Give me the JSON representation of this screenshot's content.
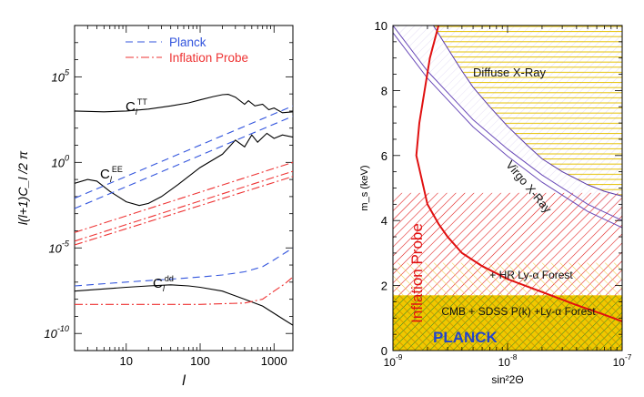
{
  "chart_data": [
    {
      "type": "line",
      "xlabel": "l",
      "ylabel": "l(l+1)C_l /2 π",
      "x_scale": "log",
      "y_scale": "log",
      "xlim": [
        2,
        1800
      ],
      "ylim": [
        1e-11,
        100000000.0
      ],
      "x_ticks": [
        {
          "value": 10,
          "label": "10"
        },
        {
          "value": 100,
          "label": "100"
        },
        {
          "value": 1000,
          "label": "1000"
        }
      ],
      "y_ticks": [
        {
          "value": 100000.0,
          "label": "10^5"
        },
        {
          "value": 1,
          "label": "10^0"
        },
        {
          "value": 1e-05,
          "label": "10^-5"
        },
        {
          "value": 1e-10,
          "label": "10^-10"
        }
      ],
      "legend": [
        {
          "label": "Planck",
          "color": "#3355dd",
          "style": "dashed"
        },
        {
          "label": "Inflation Probe",
          "color": "#ee3333",
          "style": "dash-dot"
        }
      ],
      "legend_position": "top-right",
      "curve_labels": [
        {
          "main": "C",
          "sub": "l",
          "sup": "TT"
        },
        {
          "main": "C",
          "sub": "l",
          "sup": "EE"
        },
        {
          "main": "C",
          "sub": "l",
          "sup": "dd"
        }
      ],
      "series": [
        {
          "curve": "TT",
          "color": "#000000",
          "style": "solid",
          "x": [
            2,
            5,
            10,
            20,
            40,
            70,
            100,
            150,
            200,
            240,
            300,
            400,
            450,
            550,
            700,
            850,
            1000,
            1300,
            1800
          ],
          "y": [
            1000,
            900,
            1000,
            1300,
            2000,
            3000,
            4500,
            7000,
            9000,
            9500,
            6500,
            2500,
            4000,
            2000,
            2500,
            1200,
            1500,
            800,
            900
          ]
        },
        {
          "curve": "EE",
          "color": "#000000",
          "style": "solid",
          "x": [
            2,
            3,
            4,
            6,
            10,
            15,
            20,
            30,
            50,
            100,
            200,
            300,
            400,
            500,
            600,
            800,
            1000,
            1300,
            1800
          ],
          "y": [
            0.06,
            0.1,
            0.08,
            0.02,
            0.005,
            0.003,
            0.004,
            0.01,
            0.05,
            0.5,
            3,
            20,
            8,
            40,
            15,
            50,
            25,
            40,
            30
          ]
        },
        {
          "curve": "dd",
          "color": "#000000",
          "style": "solid",
          "x": [
            2,
            5,
            10,
            20,
            40,
            70,
            100,
            200,
            400,
            700,
            1000,
            1400,
            1800
          ],
          "y": [
            3e-08,
            4e-08,
            5e-08,
            6e-08,
            7e-08,
            6e-08,
            5e-08,
            3e-08,
            1e-08,
            4e-09,
            1.5e-09,
            6e-10,
            3e-10
          ]
        },
        {
          "name": "Planck",
          "color": "#3355dd",
          "style": "dashed",
          "x": [
            2,
            1800
          ],
          "y": [
            0.008,
            2000
          ]
        },
        {
          "name": "Planck",
          "color": "#3355dd",
          "style": "dashed",
          "x": [
            2,
            1800
          ],
          "y": [
            0.002,
            500
          ]
        },
        {
          "name": "Planck",
          "color": "#3355dd",
          "style": "dashed",
          "x": [
            2,
            10,
            50,
            100,
            200,
            400,
            700,
            1000,
            1400,
            1800
          ],
          "y": [
            6e-08,
            1e-07,
            1.6e-07,
            2e-07,
            2.6e-07,
            4e-07,
            8e-07,
            2e-06,
            5e-06,
            1e-05
          ]
        },
        {
          "name": "Inflation Probe",
          "color": "#ee3333",
          "style": "dash-dot",
          "x": [
            2,
            1800
          ],
          "y": [
            8e-05,
            1
          ]
        },
        {
          "name": "Inflation Probe",
          "color": "#ee3333",
          "style": "dash-dot",
          "x": [
            2,
            1800
          ],
          "y": [
            2.5e-05,
            0.3
          ]
        },
        {
          "name": "Inflation Probe",
          "color": "#ee3333",
          "style": "dash-dot",
          "x": [
            2,
            1800
          ],
          "y": [
            1.5e-05,
            0.15
          ]
        },
        {
          "name": "Inflation Probe",
          "color": "#ee3333",
          "style": "dash-dot",
          "x": [
            2,
            10,
            100,
            400,
            700,
            1000,
            1400,
            1800
          ],
          "y": [
            5e-09,
            5e-09,
            5e-09,
            6e-09,
            1e-08,
            3e-08,
            8e-08,
            2e-07
          ]
        }
      ]
    },
    {
      "type": "area",
      "xlabel": "sin²2Θ",
      "ylabel": "m_s (keV)",
      "x_scale": "log",
      "xlim": [
        1e-09,
        1e-07
      ],
      "ylim": [
        0,
        10
      ],
      "x_ticks": [
        {
          "value": 1e-09,
          "label": "10^-9"
        },
        {
          "value": 1e-08,
          "label": "10^-8"
        },
        {
          "value": 1e-07,
          "label": "10^-7"
        }
      ],
      "y_ticks": [
        0,
        2,
        4,
        6,
        8,
        10
      ],
      "regions": [
        {
          "label": "Diffuse X-Ray",
          "color": "#e6c200",
          "hatch": "horizontal",
          "boundary": "above curve",
          "x": [
            2.25e-09,
            3e-09,
            4e-09,
            5e-09,
            7e-09,
            1e-08,
            1.5e-08,
            2e-08,
            3e-08,
            5e-08,
            7e-08,
            1e-07
          ],
          "y": [
            10,
            9.3,
            8.6,
            8.1,
            7.5,
            6.9,
            6.3,
            5.9,
            5.5,
            5.1,
            4.9,
            4.75
          ]
        },
        {
          "label": "Virgo X-Ray",
          "color": "#7a55c0",
          "hatch": "diagonal",
          "boundary": "above curve",
          "x": [
            1e-09,
            2e-09,
            5e-09,
            1e-08,
            2e-08,
            5e-08,
            1e-07
          ],
          "y": [
            10,
            8.6,
            7.1,
            6.2,
            5.4,
            4.5,
            4.0
          ]
        },
        {
          "label": "Inflation Probe",
          "color": "#e01010",
          "hatch": "diagonal",
          "y_range": [
            0,
            4.85
          ]
        },
        {
          "label": "+ HR Ly-α Forest",
          "color": "#f0d040",
          "hatch": "diagonal",
          "y_range": [
            1.7,
            2.7
          ]
        },
        {
          "label": "CMB + SDSS P(k) +Ly-α Forest",
          "color": "#f0c800",
          "hatch": "cross",
          "y_range": [
            0,
            1.7
          ]
        },
        {
          "label": "PLANCK",
          "color": "#2244cc",
          "hatch": "none",
          "y_range": [
            0,
            1.7
          ]
        }
      ],
      "series": [
        {
          "name": "",
          "color": "#e01010",
          "style": "solid",
          "x": [
            2.5e-09,
            2.1e-09,
            1.7e-09,
            1.6e-09,
            2e-09,
            2.5e-09,
            3e-09,
            4e-09,
            6e-09,
            1e-08,
            2e-08,
            4e-08,
            7e-08,
            1e-07
          ],
          "y": [
            10,
            9,
            7,
            6,
            4.5,
            3.9,
            3.5,
            3.0,
            2.6,
            2.2,
            1.8,
            1.4,
            1.1,
            0.9
          ]
        }
      ]
    }
  ]
}
